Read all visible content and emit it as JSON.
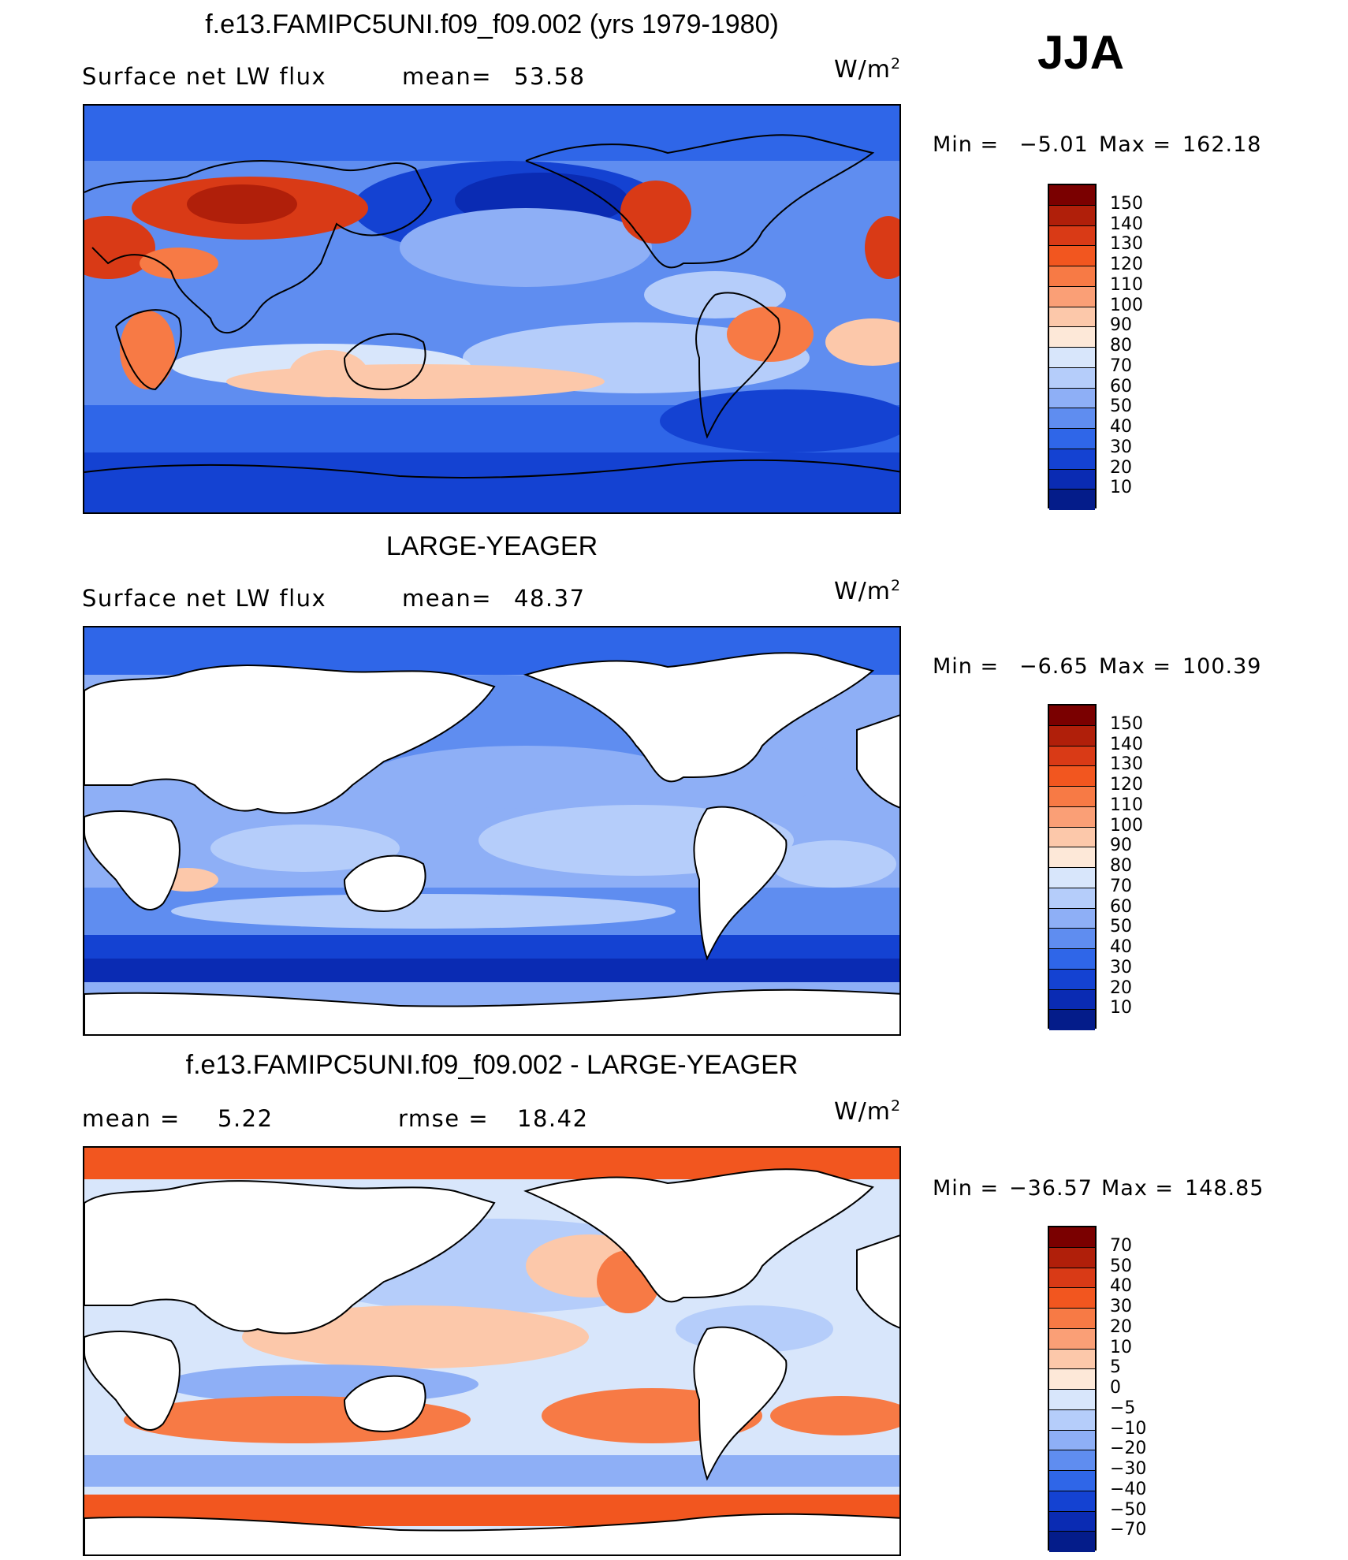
{
  "season": "JJA",
  "units_base": "W/m",
  "units_exp": "2",
  "panels": [
    {
      "title": "f.e13.FAMIPC5UNI.f09_f09.002 (yrs 1979-1980)",
      "field": "Surface net LW flux",
      "mean_label": "mean=",
      "mean_value": "53.58",
      "min_label": "Min  =",
      "min_value": "−5.01",
      "max_label": "Max  =",
      "max_value": "162.18",
      "colorbar_levels": [
        "150",
        "140",
        "130",
        "120",
        "110",
        "100",
        "90",
        "80",
        "70",
        "60",
        "50",
        "40",
        "30",
        "20",
        "10"
      ]
    },
    {
      "title": "LARGE-YEAGER",
      "field": "Surface net LW flux",
      "mean_label": "mean=",
      "mean_value": "48.37",
      "min_label": "Min  =",
      "min_value": "−6.65",
      "max_label": "Max  =",
      "max_value": "100.39",
      "colorbar_levels": [
        "150",
        "140",
        "130",
        "120",
        "110",
        "100",
        "90",
        "80",
        "70",
        "60",
        "50",
        "40",
        "30",
        "20",
        "10"
      ]
    },
    {
      "title": "f.e13.FAMIPC5UNI.f09_f09.002 - LARGE-YEAGER",
      "mean_label": "mean  =",
      "mean_value": "5.22",
      "rmse_label": "rmse  =",
      "rmse_value": "18.42",
      "min_label": "Min  =",
      "min_value": "−36.57",
      "max_label": "Max  =",
      "max_value": "148.85",
      "colorbar_levels": [
        "70",
        "50",
        "40",
        "30",
        "20",
        "10",
        "5",
        "0",
        "−5",
        "−10",
        "−20",
        "−30",
        "−40",
        "−50",
        "−70"
      ]
    }
  ],
  "colors": {
    "abs_scale": [
      "#7a0000",
      "#b01f0a",
      "#d93a16",
      "#f2561f",
      "#f77a45",
      "#fa9f76",
      "#fcc8aa",
      "#fde8d8",
      "#d8e6fb",
      "#b5cdfa",
      "#8eaff6",
      "#5f8df0",
      "#2f66e8",
      "#1442d2",
      "#0a2bb3",
      "#041c8a"
    ],
    "diff_scale": [
      "#7a0000",
      "#b01f0a",
      "#d93a16",
      "#f2561f",
      "#f77a45",
      "#fa9f76",
      "#fcc8aa",
      "#fde8d8",
      "#d8e6fb",
      "#b5cdfa",
      "#8eaff6",
      "#5f8df0",
      "#2f66e8",
      "#1442d2",
      "#0a2bb3",
      "#041c8a"
    ]
  }
}
